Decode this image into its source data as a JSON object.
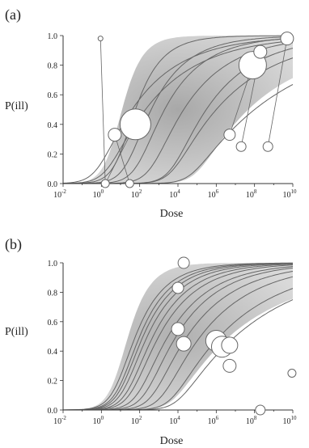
{
  "figure": {
    "panels": [
      {
        "label": "(a)",
        "ylabel": "P(ill)",
        "xlabel": "Dose"
      },
      {
        "label": "(b)",
        "ylabel": "P(ill)",
        "xlabel": "Dose"
      }
    ]
  },
  "chart_data": [
    {
      "type": "scatter",
      "title": "(a)",
      "xlabel": "Dose",
      "ylabel": "P(ill)",
      "xscale": "log",
      "xlim": [
        0.01,
        10000000000
      ],
      "ylim": [
        0.0,
        1.0
      ],
      "xticks": [
        0.01,
        1,
        100,
        10000,
        1000000,
        100000000,
        10000000000
      ],
      "xtick_labels": [
        {
          "base": "10",
          "exp": "-2"
        },
        {
          "base": "10",
          "exp": "0"
        },
        {
          "base": "10",
          "exp": "2"
        },
        {
          "base": "10",
          "exp": "4"
        },
        {
          "base": "10",
          "exp": "6"
        },
        {
          "base": "10",
          "exp": "8"
        },
        {
          "base": "10",
          "exp": "10"
        }
      ],
      "yticks": [
        "0.0",
        "0.2",
        "0.4",
        "0.6",
        "0.8",
        "1.0"
      ],
      "grid": false,
      "band": {
        "description": "shaded uncertainty region",
        "color": "#d9d9d9",
        "core_color": "#a8a8a8"
      },
      "curves": [
        {
          "n50": 60,
          "alpha": 0.38
        },
        {
          "n50": 400,
          "alpha": 0.25
        },
        {
          "n50": 2000,
          "alpha": 0.22
        },
        {
          "n50": 20000,
          "alpha": 0.18
        },
        {
          "n50": 300000,
          "alpha": 0.17
        },
        {
          "n50": 40,
          "alpha": 0.17
        },
        {
          "n50": 200,
          "alpha": 0.15
        },
        {
          "n50": 1000000,
          "alpha": 0.13
        },
        {
          "n50": 100000000,
          "alpha": 0.09
        }
      ],
      "points": [
        {
          "dose": 0.9,
          "p": 0.98,
          "size": 3
        },
        {
          "dose": 1.6,
          "p": 0.0,
          "size": 5
        },
        {
          "dose": 5,
          "p": 0.33,
          "size": 8
        },
        {
          "dose": 30,
          "p": 0.0,
          "size": 5
        },
        {
          "dose": 60,
          "p": 0.4,
          "size": 19
        },
        {
          "dose": 5000000,
          "p": 0.33,
          "size": 7
        },
        {
          "dose": 20000000,
          "p": 0.25,
          "size": 6
        },
        {
          "dose": 80000000,
          "p": 0.8,
          "size": 17
        },
        {
          "dose": 200000000,
          "p": 0.89,
          "size": 8
        },
        {
          "dose": 500000000,
          "p": 0.25,
          "size": 6
        },
        {
          "dose": 5000000000,
          "p": 0.98,
          "size": 8
        }
      ],
      "links": [
        [
          0,
          1
        ],
        [
          2,
          3
        ],
        [
          4,
          1
        ],
        [
          5,
          7
        ],
        [
          6,
          8
        ],
        [
          9,
          10
        ]
      ]
    },
    {
      "type": "scatter",
      "title": "(b)",
      "xlabel": "Dose",
      "ylabel": "P(ill)",
      "xscale": "log",
      "xlim": [
        0.01,
        10000000000
      ],
      "ylim": [
        0.0,
        1.0
      ],
      "xticks": [
        0.01,
        1,
        100,
        10000,
        1000000,
        100000000,
        10000000000
      ],
      "xtick_labels": [
        {
          "base": "10",
          "exp": "-2"
        },
        {
          "base": "10",
          "exp": "0"
        },
        {
          "base": "10",
          "exp": "2"
        },
        {
          "base": "10",
          "exp": "4"
        },
        {
          "base": "10",
          "exp": "6"
        },
        {
          "base": "10",
          "exp": "8"
        },
        {
          "base": "10",
          "exp": "10"
        }
      ],
      "yticks": [
        "0.0",
        "0.2",
        "0.4",
        "0.6",
        "0.8",
        "1.0"
      ],
      "grid": false,
      "band": {
        "description": "shaded uncertainty region",
        "color": "#d9d9d9",
        "core_color": "#b0b0b0"
      },
      "curves": [
        {
          "n50": 60,
          "alpha": 0.32
        },
        {
          "n50": 100,
          "alpha": 0.3
        },
        {
          "n50": 150,
          "alpha": 0.28
        },
        {
          "n50": 250,
          "alpha": 0.26
        },
        {
          "n50": 500,
          "alpha": 0.24
        },
        {
          "n50": 1000,
          "alpha": 0.22
        },
        {
          "n50": 3000,
          "alpha": 0.2
        },
        {
          "n50": 8000,
          "alpha": 0.19
        },
        {
          "n50": 30000,
          "alpha": 0.17
        },
        {
          "n50": 150000,
          "alpha": 0.15
        },
        {
          "n50": 1500000,
          "alpha": 0.12
        },
        {
          "n50": 10000000,
          "alpha": 0.1
        }
      ],
      "points": [
        {
          "dose": 10000,
          "p": 0.83,
          "size": 7
        },
        {
          "dose": 20000,
          "p": 1.0,
          "size": 7
        },
        {
          "dose": 10000,
          "p": 0.55,
          "size": 8
        },
        {
          "dose": 20000,
          "p": 0.45,
          "size": 9
        },
        {
          "dose": 1000000,
          "p": 0.47,
          "size": 13
        },
        {
          "dose": 2000000,
          "p": 0.43,
          "size": 13
        },
        {
          "dose": 5000000,
          "p": 0.44,
          "size": 10
        },
        {
          "dose": 5000000,
          "p": 0.3,
          "size": 8
        },
        {
          "dose": 200000000,
          "p": 0.0,
          "size": 6
        },
        {
          "dose": 9000000000,
          "p": 0.25,
          "size": 5
        }
      ],
      "links": []
    }
  ]
}
